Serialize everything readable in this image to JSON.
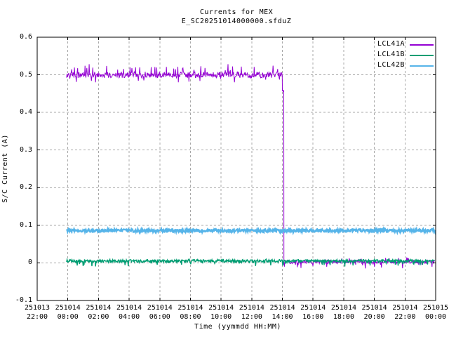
{
  "window": {
    "background": "#ffffff",
    "text_color": "#000000"
  },
  "chart_data": {
    "type": "line",
    "title": "Currents for MEX",
    "subtitle": "E_SC20251014000000.sfduZ",
    "xlabel": "Time (yymmdd HH:MM)",
    "ylabel": "S/C Current (A)",
    "ylim": [
      -0.1,
      0.6
    ],
    "grid": true,
    "grid_color": "#a8a8a8",
    "axis_color": "#000000",
    "legend_position": "top-right-inside",
    "x_hours_span": 26,
    "x_start": "251013 22:00",
    "x_end": "251015 00:00",
    "yticks": [
      {
        "label": "0.6",
        "value": 0.6
      },
      {
        "label": "0.5",
        "value": 0.5
      },
      {
        "label": "0.4",
        "value": 0.4
      },
      {
        "label": "0.3",
        "value": 0.3
      },
      {
        "label": "0.2",
        "value": 0.2
      },
      {
        "label": "0.1",
        "value": 0.1
      },
      {
        "label": "0",
        "value": 0.0
      },
      {
        "label": "-0.1",
        "value": -0.1
      }
    ],
    "xticks": [
      {
        "date": "251013",
        "time": "22:00"
      },
      {
        "date": "251014",
        "time": "00:00"
      },
      {
        "date": "251014",
        "time": "02:00"
      },
      {
        "date": "251014",
        "time": "04:00"
      },
      {
        "date": "251014",
        "time": "06:00"
      },
      {
        "date": "251014",
        "time": "08:00"
      },
      {
        "date": "251014",
        "time": "10:00"
      },
      {
        "date": "251014",
        "time": "12:00"
      },
      {
        "date": "251014",
        "time": "14:00"
      },
      {
        "date": "251014",
        "time": "16:00"
      },
      {
        "date": "251014",
        "time": "18:00"
      },
      {
        "date": "251014",
        "time": "20:00"
      },
      {
        "date": "251014",
        "time": "22:00"
      },
      {
        "date": "251015",
        "time": "00:00"
      }
    ],
    "series": [
      {
        "name": "LCL41A",
        "color": "#9400d3",
        "width": 1,
        "description": "Noisy ~0.50 A from 251014 00:00; brief step to ~0.46 A then sharp drop to ~0 A at 251014 14:00; noisy ~0 A until end of data",
        "segments": [
          {
            "t0": 1.92,
            "t1": 16.0,
            "level": 0.5,
            "noise": 0.008,
            "spike_up": 0.03,
            "spike_down": 0.02,
            "spike_prob": 0.12,
            "down_ratio": 0.4
          },
          {
            "t0": 16.0,
            "t1": 16.1,
            "level": 0.457,
            "noise": 0.002,
            "spike_up": 0,
            "spike_down": 0,
            "spike_prob": 0
          },
          {
            "t0": 16.1,
            "t1": 25.95,
            "level": 0.003,
            "noise": 0.005,
            "spike_up": 0.012,
            "spike_down": 0.018,
            "spike_prob": 0.08,
            "down_ratio": 0.6
          }
        ]
      },
      {
        "name": "LCL41B",
        "color": "#009e73",
        "width": 1.4,
        "description": "Noisy ~0.005 A (0 to 0.01 A band) with occasional dips to ~-0.01 A, from 251014 00:00 to end",
        "segments": [
          {
            "t0": 1.92,
            "t1": 25.95,
            "level": 0.005,
            "noise": 0.004,
            "spike_up": 0.005,
            "spike_down": 0.015,
            "spike_prob": 0.06,
            "down_ratio": 0.75
          }
        ]
      },
      {
        "name": "LCL42B",
        "color": "#56b4e9",
        "width": 2.4,
        "description": "Steady ~0.086 A band (approx 0.08-0.09 A) from 251014 00:00 to end",
        "segments": [
          {
            "t0": 1.92,
            "t1": 26.0,
            "level": 0.086,
            "noise": 0.004,
            "spike_up": 0.002,
            "spike_down": 0.006,
            "spike_prob": 0.05,
            "down_ratio": 0.8
          }
        ]
      }
    ]
  }
}
